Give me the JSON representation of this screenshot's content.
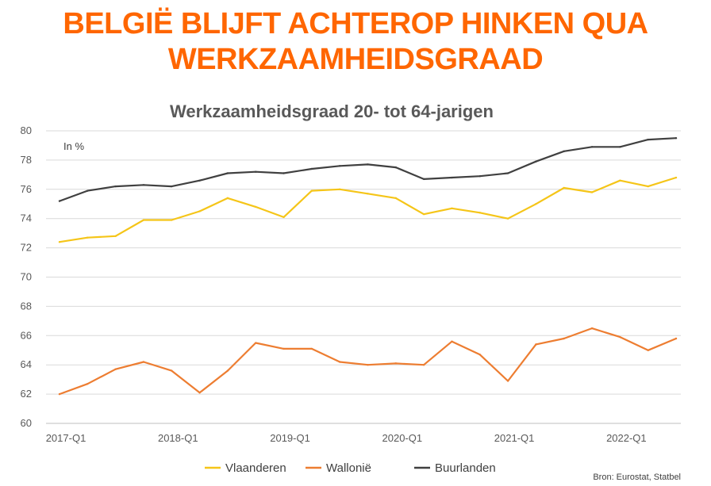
{
  "headline": {
    "line1": "BELGIË BLIJFT ACHTEROP HINKEN QUA",
    "line2": "WERKZAAMHEIDSGRAAD",
    "color": "#FF6600"
  },
  "source": "Bron: Eurostat, Statbel",
  "chart_data": {
    "type": "line",
    "title": "Werkzaamheidsgraad 20- tot 64-jarigen",
    "unit_label": "In %",
    "xlabel": "",
    "ylabel": "",
    "ylim": [
      60,
      80
    ],
    "yticks": [
      "60",
      "62",
      "64",
      "66",
      "68",
      "70",
      "72",
      "74",
      "76",
      "78",
      "80"
    ],
    "xticks": [
      "2017-Q1",
      "2018-Q1",
      "2019-Q1",
      "2020-Q1",
      "2021-Q1",
      "2022-Q1"
    ],
    "xtick_index": [
      0,
      4,
      8,
      12,
      16,
      20
    ],
    "grid": true,
    "legend_position": "bottom",
    "categories": [
      "2017-Q1",
      "2017-Q2",
      "2017-Q3",
      "2017-Q4",
      "2018-Q1",
      "2018-Q2",
      "2018-Q3",
      "2018-Q4",
      "2019-Q1",
      "2019-Q2",
      "2019-Q3",
      "2019-Q4",
      "2020-Q1",
      "2020-Q2",
      "2020-Q3",
      "2020-Q4",
      "2021-Q1",
      "2021-Q2",
      "2021-Q3",
      "2021-Q4",
      "2022-Q1",
      "2022-Q2",
      "2022-Q3"
    ],
    "series": [
      {
        "name": "Vlaanderen",
        "color": "#F5C518",
        "values": [
          72.4,
          72.7,
          72.8,
          73.9,
          73.9,
          74.5,
          75.4,
          74.8,
          74.1,
          75.9,
          76.0,
          75.7,
          75.4,
          74.3,
          74.7,
          74.4,
          74.0,
          75.0,
          76.1,
          75.8,
          76.6,
          76.2,
          76.8
        ]
      },
      {
        "name": "Wallonië",
        "color": "#ED7D31",
        "values": [
          62.0,
          62.7,
          63.7,
          64.2,
          63.6,
          62.1,
          63.6,
          65.5,
          65.1,
          65.1,
          64.2,
          64.0,
          64.1,
          64.0,
          65.6,
          64.7,
          62.9,
          65.4,
          65.8,
          66.5,
          65.9,
          65.0,
          65.8
        ]
      },
      {
        "name": "Buurlanden",
        "color": "#404040",
        "values": [
          75.2,
          75.9,
          76.2,
          76.3,
          76.2,
          76.6,
          77.1,
          77.2,
          77.1,
          77.4,
          77.6,
          77.7,
          77.5,
          76.7,
          76.8,
          76.9,
          77.1,
          77.9,
          78.6,
          78.9,
          78.9,
          79.4,
          79.5
        ]
      }
    ]
  }
}
